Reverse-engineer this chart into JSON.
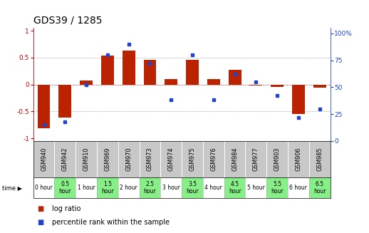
{
  "title": "GDS39 / 1285",
  "samples": [
    "GSM940",
    "GSM942",
    "GSM910",
    "GSM969",
    "GSM970",
    "GSM973",
    "GSM974",
    "GSM975",
    "GSM976",
    "GSM984",
    "GSM977",
    "GSM903",
    "GSM906",
    "GSM985"
  ],
  "time_labels": [
    "0 hour",
    "0.5\nhour",
    "1 hour",
    "1.5\nhour",
    "2 hour",
    "2.5\nhour",
    "3 hour",
    "3.5\nhour",
    "4 hour",
    "4.5\nhour",
    "5 hour",
    "5.5\nhour",
    "6 hour",
    "6.5\nhour"
  ],
  "log_ratio": [
    -0.82,
    -0.62,
    0.07,
    0.54,
    0.63,
    0.46,
    0.1,
    0.46,
    0.1,
    0.27,
    -0.02,
    -0.05,
    -0.55,
    -0.06
  ],
  "percentile": [
    15,
    18,
    52,
    80,
    90,
    72,
    38,
    80,
    38,
    62,
    55,
    42,
    22,
    30
  ],
  "bar_color": "#bb2200",
  "dot_color": "#2244cc",
  "zero_line_color": "#cc0000",
  "sample_bg": "#c8c8c8",
  "time_bg_odd": "#ffffff",
  "time_bg_even": "#88ee88",
  "ylim": [
    -1.05,
    1.05
  ],
  "y2lim": [
    0,
    105
  ],
  "yticks": [
    -1,
    -0.5,
    0,
    0.5,
    1
  ],
  "y2ticks": [
    0,
    25,
    50,
    75,
    100
  ],
  "ylabel_color_left": "#cc0000",
  "ylabel_color_right": "#2244cc",
  "legend_bar_label": "log ratio",
  "legend_dot_label": "percentile rank within the sample",
  "title_fontsize": 10,
  "tick_fontsize": 6.5,
  "sample_fontsize": 5.8,
  "time_fontsize": 5.5,
  "legend_fontsize": 7
}
